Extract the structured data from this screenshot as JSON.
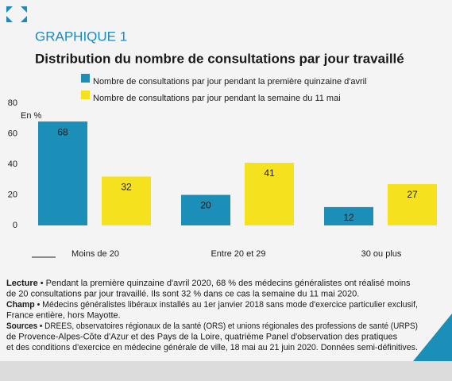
{
  "header": "GRAPHIQUE 1",
  "chart_data": {
    "type": "bar",
    "title": "Distribution du nombre de consultations par jour travaillé",
    "y_label": "En %",
    "categories": [
      "Moins de 20",
      "Entre 20 et 29",
      "30 ou plus"
    ],
    "series": [
      {
        "name": "Nombre de consultations par jour pendant la première quinzaine d'avril",
        "color": "#1b8fb8",
        "values": [
          68,
          20,
          12
        ]
      },
      {
        "name": "Nombre de consultations par jour pendant la semaine du 11 mai",
        "color": "#f6e11e",
        "values": [
          32,
          41,
          27
        ]
      }
    ],
    "ylim": [
      0,
      80
    ],
    "yticks": [
      0,
      20,
      40,
      60,
      80
    ],
    "grid": false
  },
  "notes": [
    {
      "label": "Lecture",
      "lines": [
        "• Pendant la première quinzaine d'avril 2020, 68 % des médecins généralistes ont réalisé moins",
        "de 20 consultations par jour travaillé. Ils sont 32 % dans ce cas la semaine du 11 mai 2020."
      ]
    },
    {
      "label": "Champ",
      "lines": [
        "• Médecins généralistes libéraux installés au 1er janvier 2018 sans mode d'exercice particulier exclusif,",
        "France entière, hors Mayotte."
      ]
    },
    {
      "label": "Sources",
      "lines": [
        "• DREES, observatoires régionaux de la santé (ORS) et unions régionales des professions de santé (URPS)",
        "de Provence-Alpes-Côte d'Azur et des Pays de la Loire, quatrième Panel d'observation des pratiques",
        "et des conditions d'exercice en médecine générale de ville, 18 mai au 21 juin 2020. Données semi-définitives."
      ]
    }
  ]
}
